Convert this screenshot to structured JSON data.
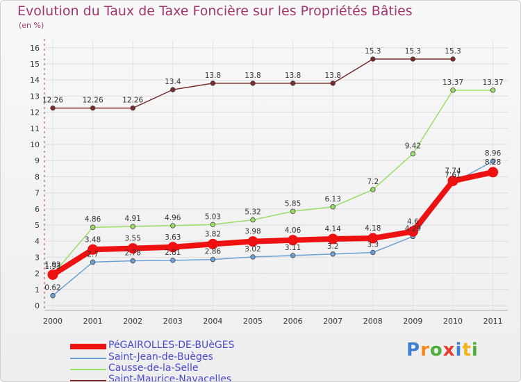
{
  "chart_data": {
    "type": "line",
    "title": "Evolution du Taux de Taxe Foncière sur les Propriétés Bâties",
    "ylabel": "(en %)",
    "xlabel": "",
    "x": [
      "2000",
      "2001",
      "2002",
      "2003",
      "2004",
      "2005",
      "2006",
      "2007",
      "2008",
      "2009",
      "2010",
      "2011"
    ],
    "ylim": [
      0,
      16
    ],
    "yticks": [
      "0",
      "1",
      "2",
      "3",
      "4",
      "5",
      "6",
      "7",
      "8",
      "9",
      "10",
      "11",
      "12",
      "13",
      "14",
      "15",
      "16"
    ],
    "series": [
      {
        "name": "Saint-Maurice-Navacelles",
        "color": "#7a2a2a",
        "values": [
          12.26,
          12.26,
          12.26,
          13.4,
          13.8,
          13.8,
          13.8,
          13.8,
          15.3,
          15.3,
          15.3,
          null
        ],
        "labels": [
          "12.26",
          "12.26",
          "12.26",
          "13.4",
          "13.8",
          "13.8",
          "13.8",
          "13.8",
          "15.3",
          "15.3",
          "15.3",
          ""
        ]
      },
      {
        "name": "Causse-de-la-Selle",
        "color": "#99dd66",
        "values": [
          1.93,
          4.86,
          4.91,
          4.96,
          5.03,
          5.32,
          5.85,
          6.13,
          7.2,
          9.42,
          13.37,
          13.37
        ],
        "labels": [
          "1.93",
          "4.86",
          "4.91",
          "4.96",
          "5.03",
          "5.32",
          "5.85",
          "6.13",
          "7.2",
          "9.42",
          "13.37",
          "13.37"
        ]
      },
      {
        "name": "Saint-Jean-de-Buèges",
        "color": "#6a9fd4",
        "values": [
          0.62,
          2.7,
          2.78,
          2.81,
          2.86,
          3.02,
          3.11,
          3.2,
          3.3,
          4.29,
          7.61,
          8.96
        ],
        "labels": [
          "0.62",
          "2.7",
          "2.78",
          "2.81",
          "2.86",
          "3.02",
          "3.11",
          "3.2",
          "3.3",
          "4.29",
          "7.61",
          "8.96"
        ]
      },
      {
        "name": "PéGAIROLLES-DE-BUèGES",
        "color": "#ee1111",
        "values": [
          1.92,
          3.48,
          3.55,
          3.63,
          3.82,
          3.98,
          4.06,
          4.14,
          4.18,
          4.6,
          7.74,
          8.28
        ],
        "labels": [
          "1.92",
          "3.48",
          "3.55",
          "3.63",
          "3.82",
          "3.98",
          "4.06",
          "4.14",
          "4.18",
          "4.6",
          "7.74",
          "8.28"
        ]
      }
    ],
    "legend": [
      {
        "name": "PéGAIROLLES-DE-BUèGES",
        "color": "#ee1111"
      },
      {
        "name": "Saint-Jean-de-Buèges",
        "color": "#6a9fd4"
      },
      {
        "name": "Causse-de-la-Selle",
        "color": "#99dd66"
      },
      {
        "name": "Saint-Maurice-Navacelles",
        "color": "#7a2a2a"
      }
    ]
  },
  "brand": {
    "letters": [
      "P",
      "r",
      "o",
      "x",
      "i",
      "t",
      "i"
    ],
    "colors": [
      "#3f7fd0",
      "#f28a1a",
      "#4fae3a",
      "#e63c2b",
      "#3f7fd0",
      "#f2b21a",
      "#4fae3a"
    ]
  }
}
